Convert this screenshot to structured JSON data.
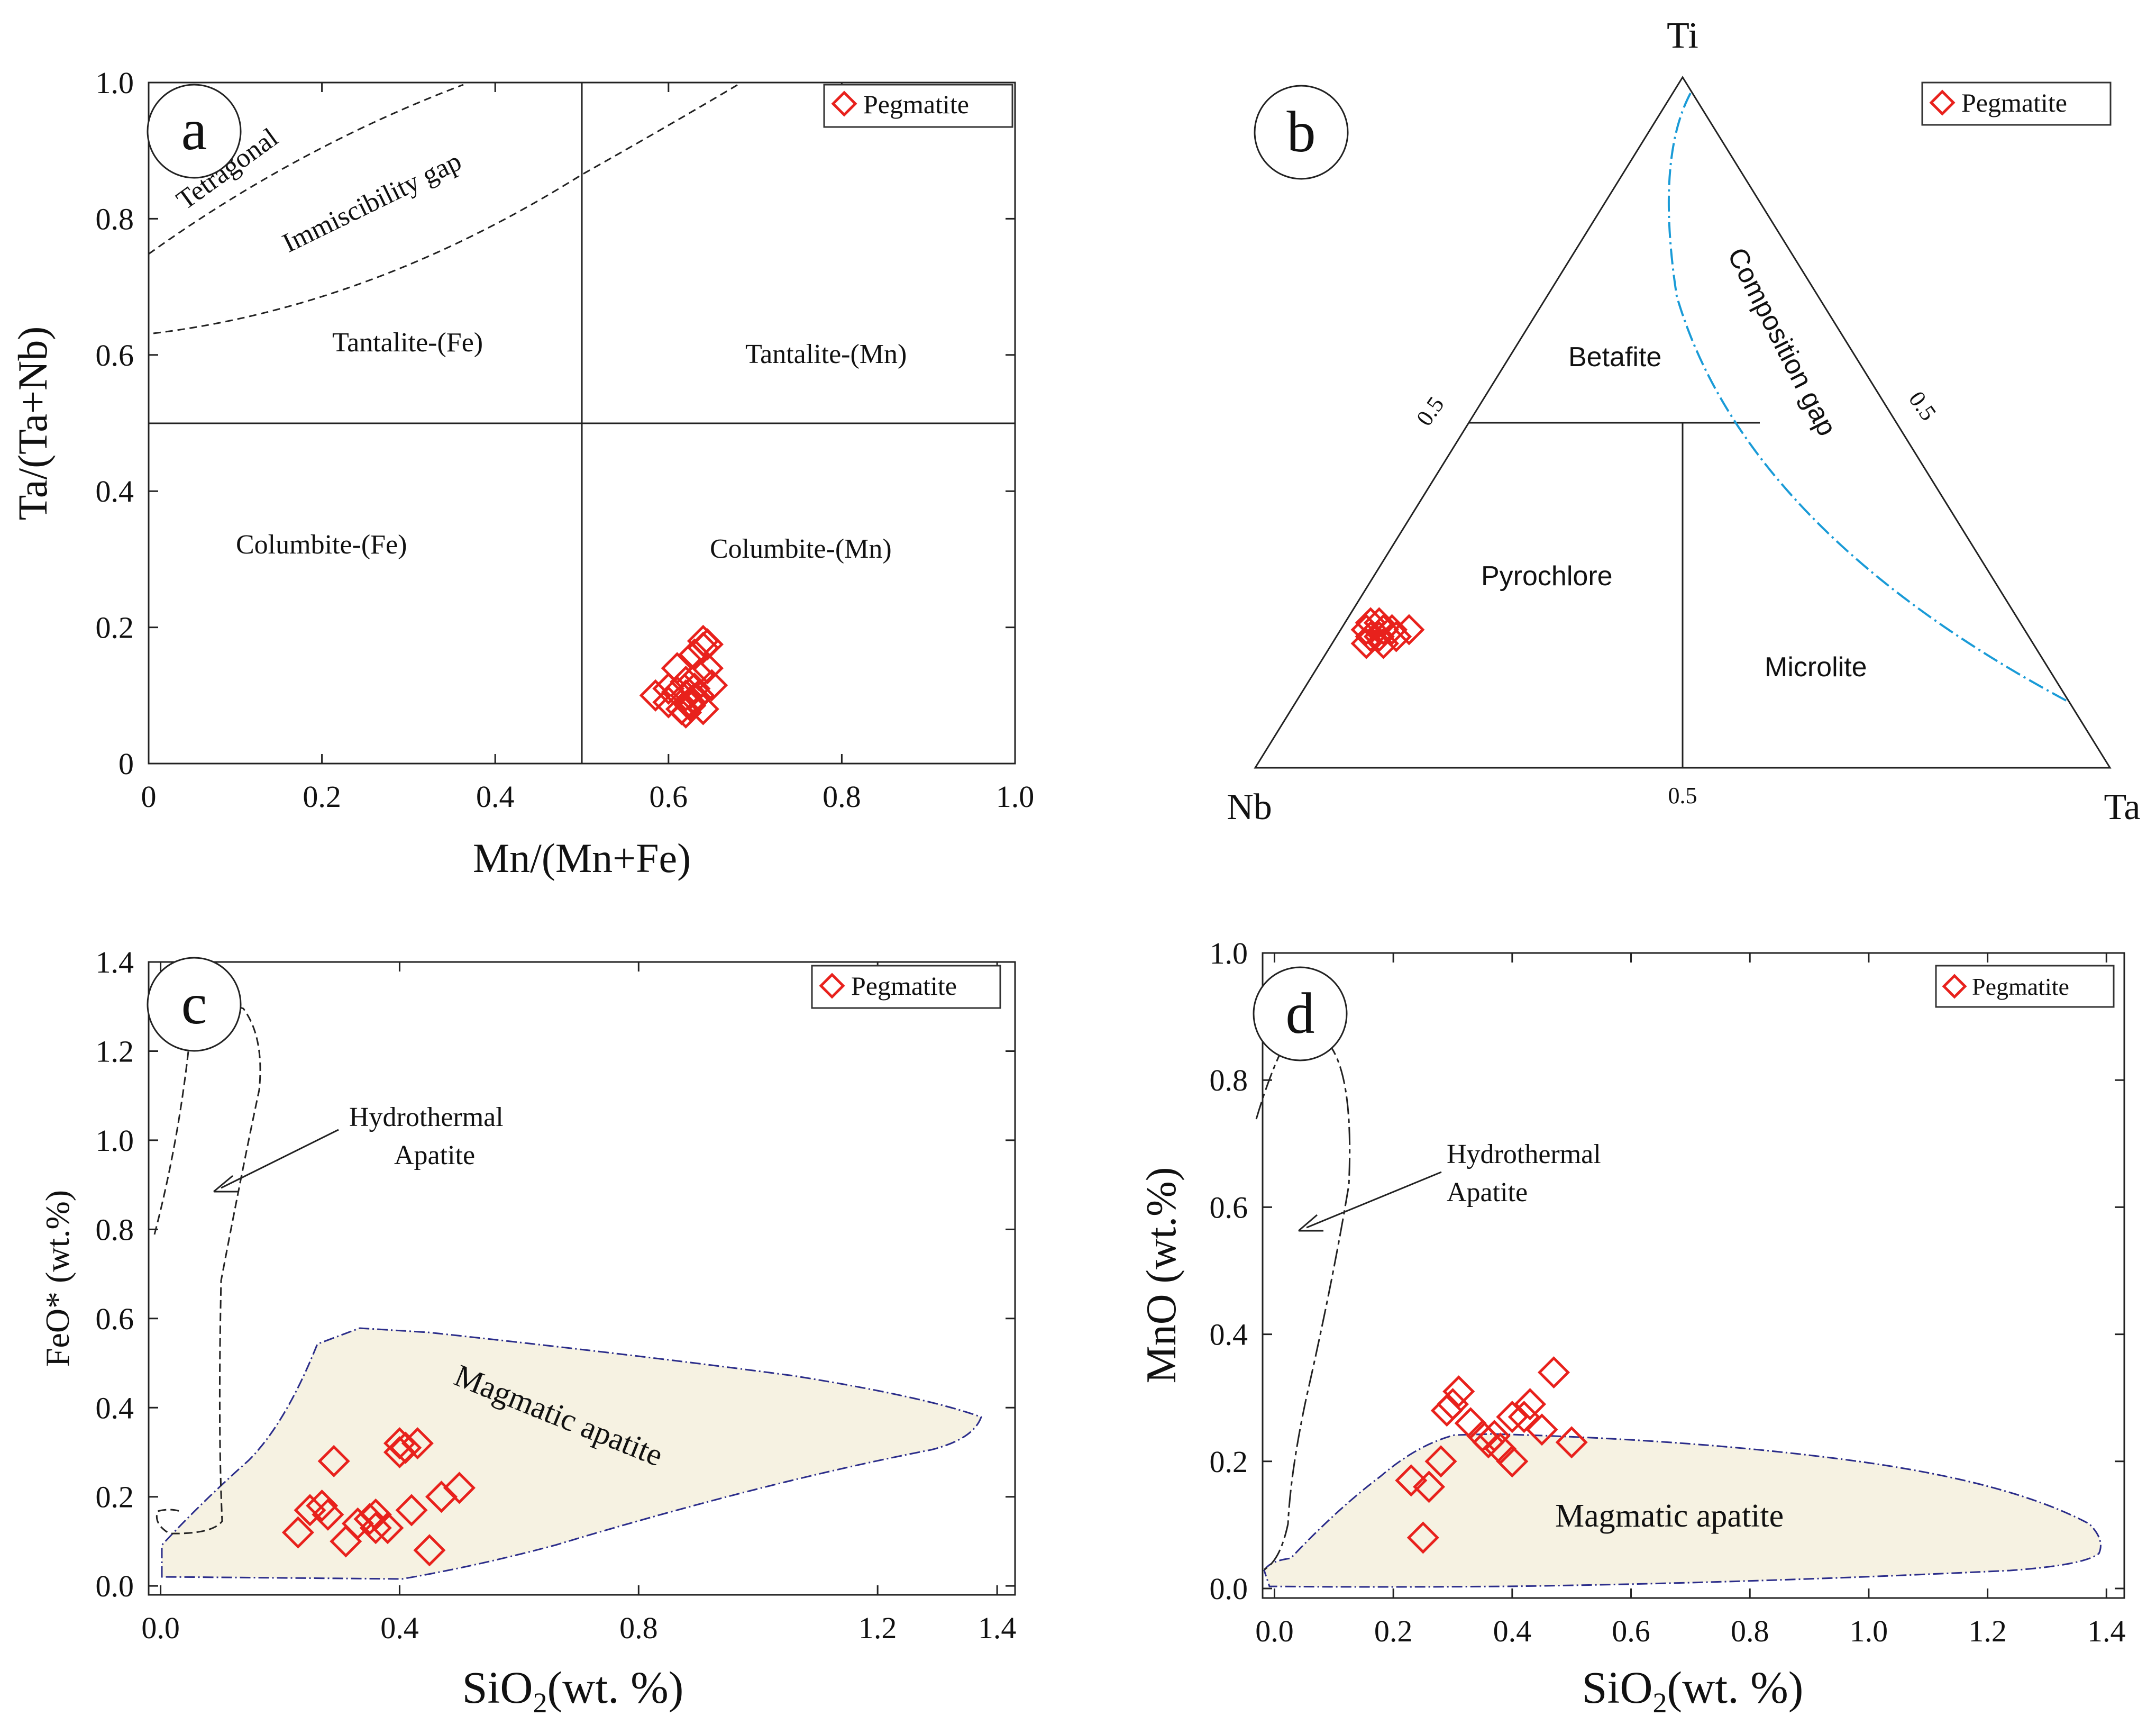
{
  "panels": {
    "a": {
      "letter": "a",
      "xlabel": "Mn/(Mn+Fe)",
      "ylabel": "Ta/(Ta+Nb)",
      "legend": "Pegmatite",
      "regions": {
        "tetragonal": "Tetragonal",
        "immiscibility": "Immiscibility gap",
        "tantalite_fe": "Tantalite-(Fe)",
        "tantalite_mn": "Tantalite-(Mn)",
        "columbite_fe": "Columbite-(Fe)",
        "columbite_mn": "Columbite-(Mn)"
      },
      "x_ticks": [
        "0",
        "0.2",
        "0.4",
        "0.6",
        "0.8",
        "1.0"
      ],
      "y_ticks": [
        "0",
        "0.2",
        "0.4",
        "0.6",
        "0.8",
        "1.0"
      ]
    },
    "b": {
      "letter": "b",
      "legend": "Pegmatite",
      "vertices": {
        "top": "Ti",
        "left": "Nb",
        "right": "Ta"
      },
      "regions": {
        "betafite": "Betafite",
        "pyrochlore": "Pyrochlore",
        "microlite": "Microlite",
        "composition_gap": "Composition gap"
      },
      "tick_left": "0.5",
      "tick_right": "0.5",
      "tick_bottom": "0.5"
    },
    "c": {
      "letter": "c",
      "ylabel": "FeO* (wt.%)",
      "xlabel_main": "SiO",
      "xlabel_sub": "2",
      "xlabel_rest": "(wt. %)",
      "legend": "Pegmatite",
      "hydro_label_1": "Hydrothermal",
      "hydro_label_2": "Apatite",
      "magmatic_label": "Magmatic apatite",
      "x_ticks": [
        "0.0",
        "0.4",
        "0.8",
        "1.2",
        "1.4"
      ],
      "y_ticks": [
        "0.0",
        "0.2",
        "0.4",
        "0.6",
        "0.8",
        "1.0",
        "1.2",
        "1.4"
      ]
    },
    "d": {
      "letter": "d",
      "ylabel": "MnO (wt.%)",
      "xlabel_main": "SiO",
      "xlabel_sub": "2",
      "xlabel_rest": "(wt. %)",
      "legend": "Pegmatite",
      "hydro_label_1": "Hydrothermal",
      "hydro_label_2": "Apatite",
      "magmatic_label": "Magmatic apatite",
      "x_ticks": [
        "0.0",
        "0.2",
        "0.4",
        "0.6",
        "0.8",
        "1.0",
        "1.2",
        "1.4"
      ],
      "y_ticks": [
        "0.0",
        "0.2",
        "0.4",
        "0.6",
        "0.8",
        "1.0"
      ]
    }
  },
  "colors": {
    "marker": "#e8211c",
    "composition_gap": "#1a9bd7",
    "magmatic_fill": "#f6f2e2",
    "magmatic_stroke": "#2b2d8a"
  },
  "chart_data": [
    {
      "type": "scatter",
      "panel": "a",
      "xlabel": "Mn/(Mn+Fe)",
      "ylabel": "Ta/(Ta+Nb)",
      "xlim": [
        0,
        1.0
      ],
      "ylim": [
        0,
        1.0
      ],
      "series": [
        {
          "name": "Pegmatite",
          "marker": "open-diamond",
          "x": [
            0.585,
            0.6,
            0.61,
            0.615,
            0.62,
            0.62,
            0.625,
            0.63,
            0.63,
            0.635,
            0.64,
            0.64,
            0.645,
            0.65,
            0.62,
            0.63,
            0.61,
            0.64,
            0.645,
            0.6,
            0.625,
            0.635
          ],
          "y": [
            0.1,
            0.09,
            0.14,
            0.08,
            0.1,
            0.12,
            0.09,
            0.11,
            0.16,
            0.13,
            0.18,
            0.17,
            0.14,
            0.115,
            0.075,
            0.095,
            0.105,
            0.08,
            0.175,
            0.11,
            0.085,
            0.1
          ]
        }
      ],
      "boundaries": {
        "vertical_at_x": 0.5,
        "horizontal_at_y": 0.5
      }
    },
    {
      "type": "scatter",
      "panel": "b",
      "ternary": [
        "Ti",
        "Nb",
        "Ta"
      ],
      "series": [
        {
          "name": "Pegmatite",
          "marker": "open-diamond",
          "Ti": [
            0.2,
            0.19,
            0.21,
            0.2,
            0.18,
            0.19,
            0.2,
            0.21,
            0.19,
            0.2,
            0.18,
            0.2
          ],
          "Ta": [
            0.03,
            0.05,
            0.04,
            0.06,
            0.04,
            0.07,
            0.05,
            0.03,
            0.04,
            0.08,
            0.06,
            0.05
          ]
        }
      ],
      "boundaries": {
        "betafite_ti_min": 0.5,
        "microlite_ta_over_nb_ta_min": 0.5
      }
    },
    {
      "type": "scatter",
      "panel": "c",
      "xlabel": "SiO2(wt. %)",
      "ylabel": "FeO* (wt.%)",
      "xlim": [
        0,
        1.4
      ],
      "ylim": [
        0,
        1.4
      ],
      "series": [
        {
          "name": "Pegmatite",
          "marker": "open-diamond",
          "x": [
            0.23,
            0.25,
            0.27,
            0.28,
            0.29,
            0.31,
            0.33,
            0.35,
            0.36,
            0.36,
            0.38,
            0.4,
            0.4,
            0.41,
            0.42,
            0.43,
            0.45,
            0.47,
            0.5
          ],
          "y": [
            0.12,
            0.17,
            0.18,
            0.16,
            0.28,
            0.1,
            0.14,
            0.15,
            0.16,
            0.13,
            0.13,
            0.3,
            0.32,
            0.31,
            0.17,
            0.32,
            0.08,
            0.2,
            0.22
          ]
        }
      ],
      "fields": [
        "Hydrothermal Apatite",
        "Magmatic apatite"
      ]
    },
    {
      "type": "scatter",
      "panel": "d",
      "xlabel": "SiO2(wt. %)",
      "ylabel": "MnO (wt.%)",
      "xlim": [
        0,
        1.4
      ],
      "ylim": [
        0,
        1.0
      ],
      "series": [
        {
          "name": "Pegmatite",
          "marker": "open-diamond",
          "x": [
            0.23,
            0.25,
            0.26,
            0.28,
            0.29,
            0.3,
            0.31,
            0.33,
            0.35,
            0.36,
            0.37,
            0.38,
            0.4,
            0.4,
            0.42,
            0.43,
            0.45,
            0.47,
            0.5
          ],
          "y": [
            0.17,
            0.08,
            0.16,
            0.2,
            0.28,
            0.29,
            0.31,
            0.26,
            0.24,
            0.23,
            0.24,
            0.22,
            0.2,
            0.27,
            0.27,
            0.29,
            0.25,
            0.34,
            0.23
          ]
        }
      ],
      "fields": [
        "Hydrothermal Apatite",
        "Magmatic apatite"
      ]
    }
  ]
}
